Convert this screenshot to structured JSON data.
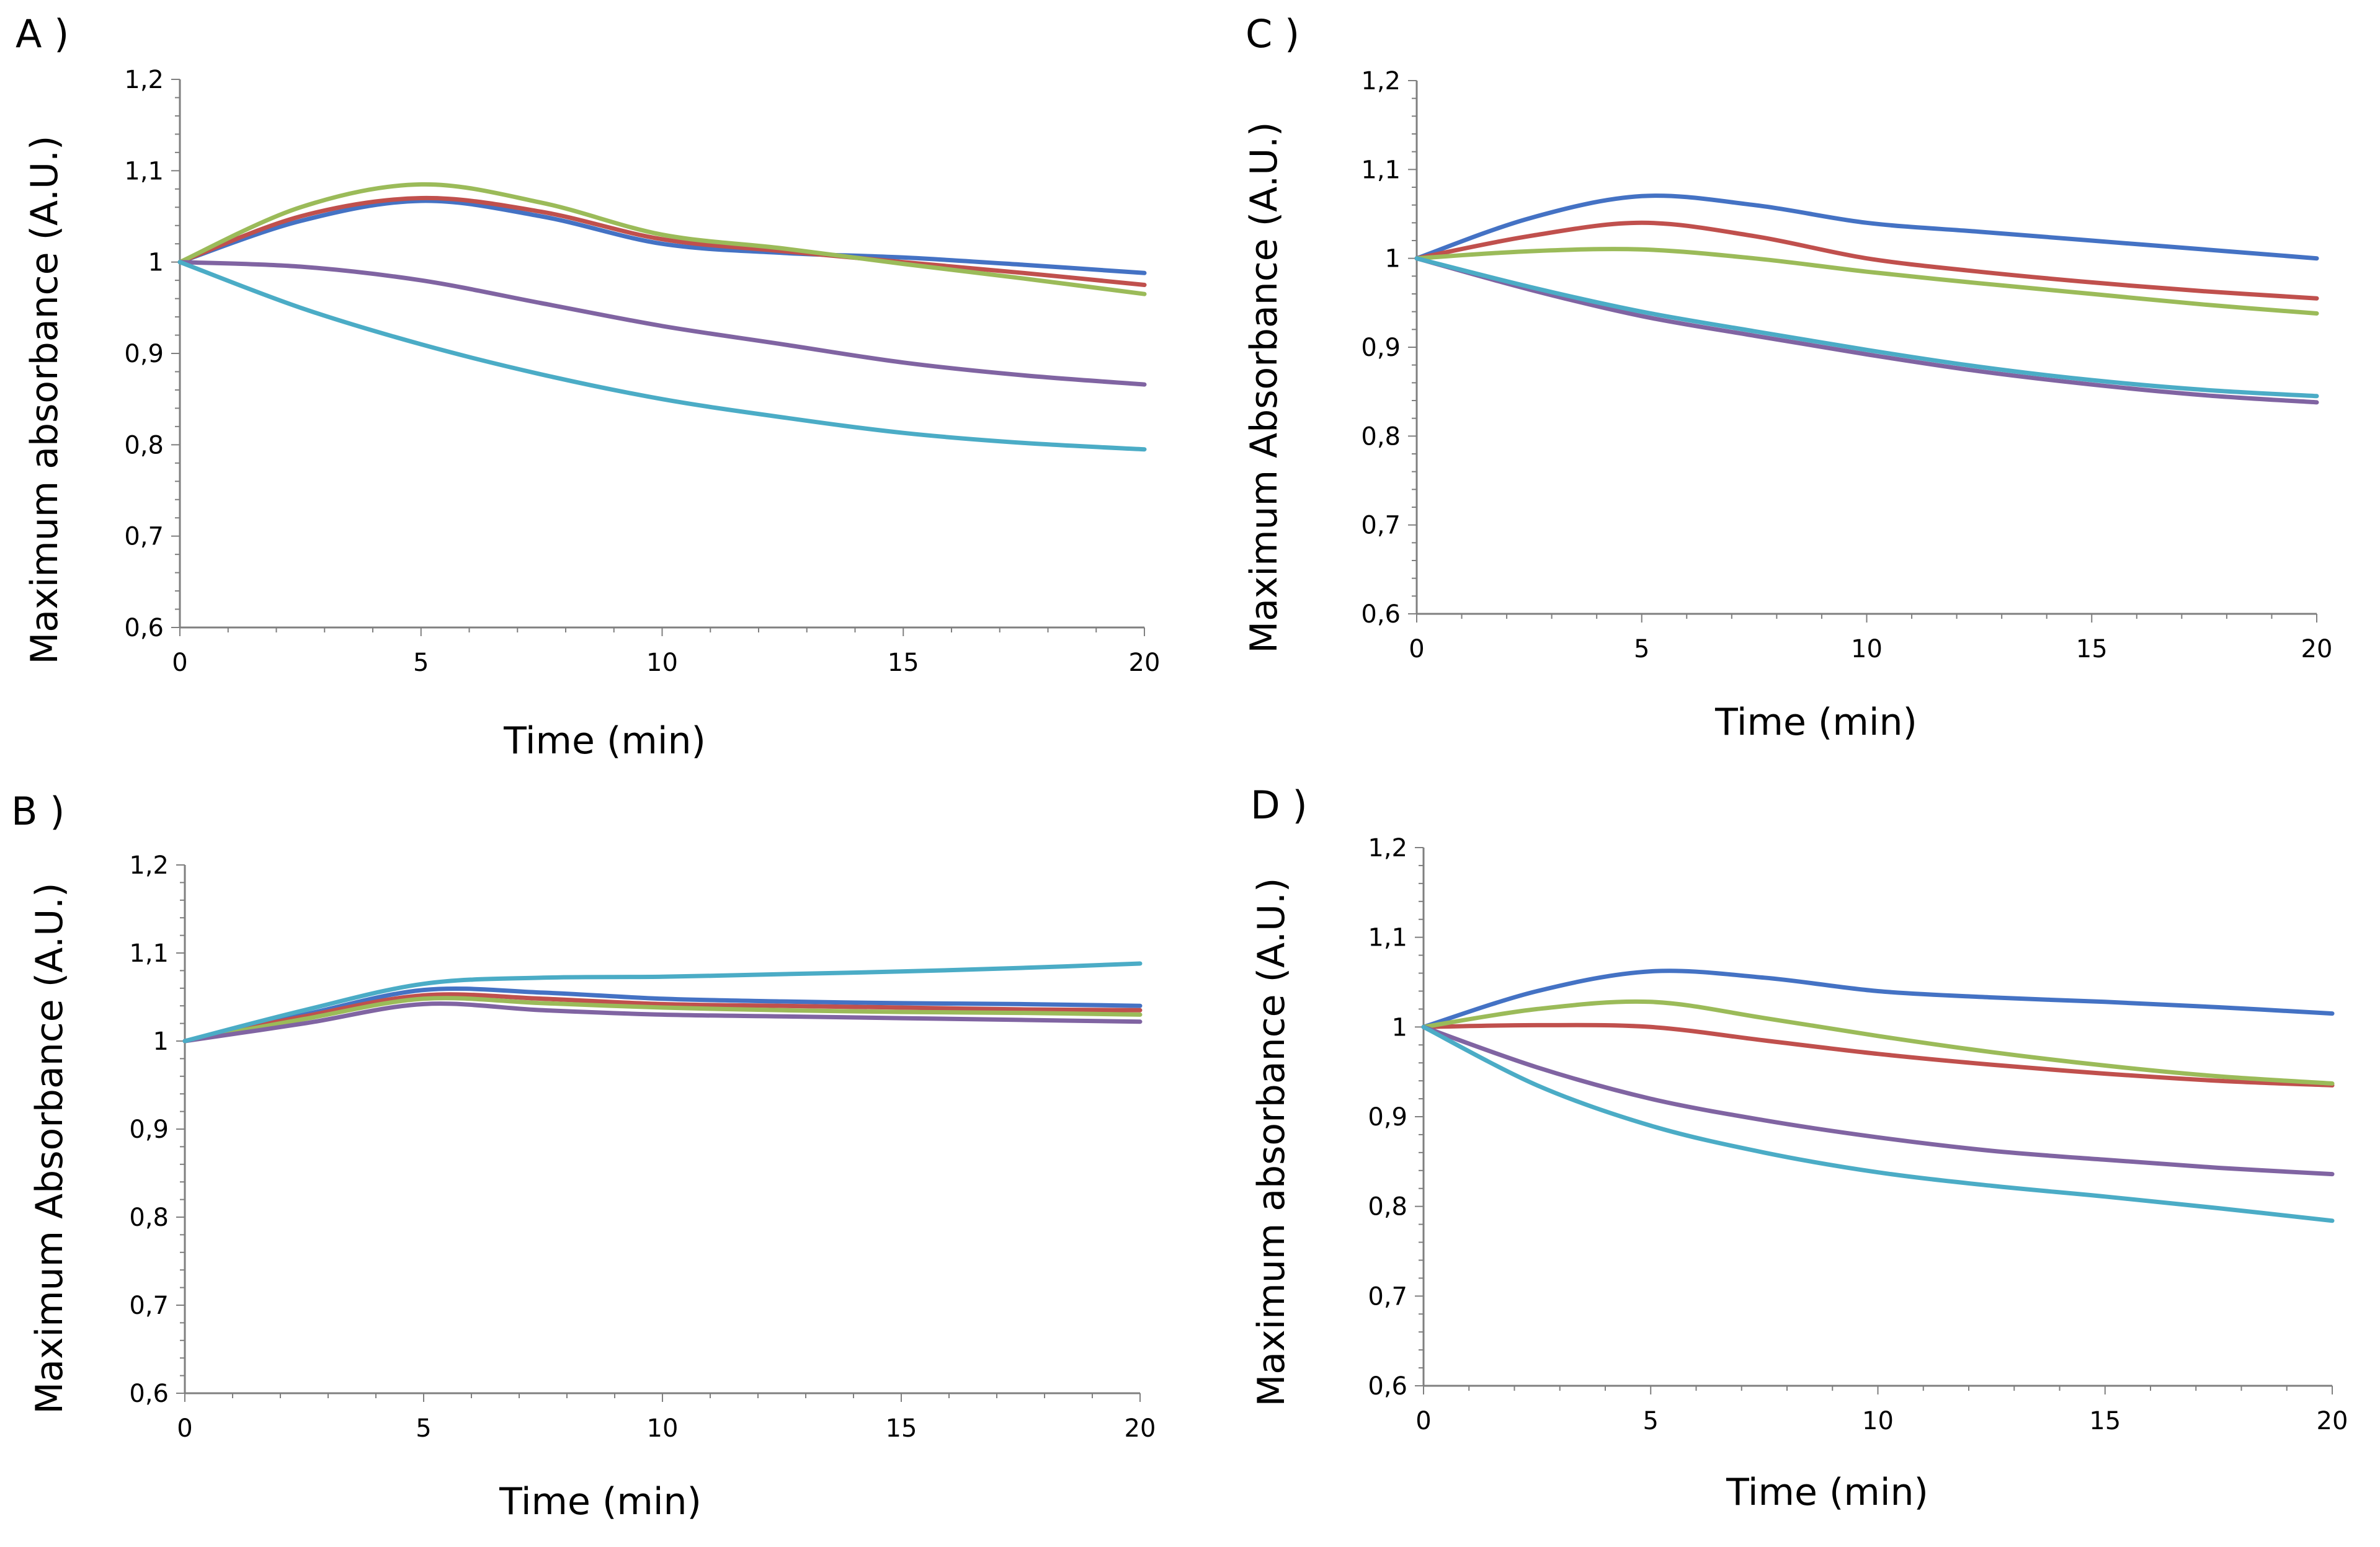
{
  "figure": {
    "series_colors": [
      "#4472C4",
      "#C0504D",
      "#9BBB59",
      "#8064A2",
      "#4BACC6"
    ]
  },
  "chart_data": [
    {
      "id": "A",
      "type": "line",
      "panel_label": "A )",
      "title": "",
      "xlabel": "Time (min)",
      "ylabel": "Maximum absorbance (A.U.)",
      "xlim": [
        0,
        20
      ],
      "ylim": [
        0.6,
        1.2
      ],
      "xticks": [
        0,
        5,
        10,
        15,
        20
      ],
      "xtick_labels": [
        "0",
        "5",
        "10",
        "15",
        "20"
      ],
      "yticks": [
        0.6,
        0.7,
        0.8,
        0.9,
        1.0,
        1.1,
        1.2
      ],
      "ytick_labels": [
        "0,6",
        "0,7",
        "0,8",
        "0,9",
        "1",
        "1,1",
        "1,2"
      ],
      "grid": false,
      "x": [
        0,
        2.5,
        5,
        7.5,
        10,
        12.5,
        15,
        17.5,
        20
      ],
      "series": [
        {
          "color": "#4472C4",
          "values": [
            1.0,
            1.045,
            1.067,
            1.05,
            1.02,
            1.01,
            1.005,
            0.997,
            0.988
          ]
        },
        {
          "color": "#C0504D",
          "values": [
            1.0,
            1.05,
            1.07,
            1.055,
            1.025,
            1.012,
            1.0,
            0.988,
            0.975
          ]
        },
        {
          "color": "#9BBB59",
          "values": [
            1.0,
            1.06,
            1.085,
            1.065,
            1.03,
            1.015,
            0.998,
            0.982,
            0.965
          ]
        },
        {
          "color": "#8064A2",
          "values": [
            1.0,
            0.995,
            0.98,
            0.955,
            0.93,
            0.91,
            0.89,
            0.876,
            0.866
          ]
        },
        {
          "color": "#4BACC6",
          "values": [
            1.0,
            0.95,
            0.91,
            0.877,
            0.85,
            0.83,
            0.813,
            0.802,
            0.795
          ]
        }
      ]
    },
    {
      "id": "B",
      "type": "line",
      "panel_label": "B )",
      "title": "",
      "xlabel": "Time (min)",
      "ylabel": "Maximum Absorbance (A.U.)",
      "xlim": [
        0,
        20
      ],
      "ylim": [
        0.6,
        1.2
      ],
      "xticks": [
        0,
        5,
        10,
        15,
        20
      ],
      "xtick_labels": [
        "0",
        "5",
        "10",
        "15",
        "20"
      ],
      "yticks": [
        0.6,
        0.7,
        0.8,
        0.9,
        1.0,
        1.1,
        1.2
      ],
      "ytick_labels": [
        "0,6",
        "0,7",
        "0,8",
        "0,9",
        "1",
        "1,1",
        "1,2"
      ],
      "grid": false,
      "x": [
        0,
        2.5,
        5,
        7.5,
        10,
        12.5,
        15,
        17.5,
        20
      ],
      "series": [
        {
          "color": "#4472C4",
          "values": [
            1.0,
            1.03,
            1.058,
            1.055,
            1.048,
            1.045,
            1.043,
            1.042,
            1.04
          ]
        },
        {
          "color": "#C0504D",
          "values": [
            1.0,
            1.028,
            1.052,
            1.048,
            1.042,
            1.04,
            1.038,
            1.036,
            1.035
          ]
        },
        {
          "color": "#9BBB59",
          "values": [
            1.0,
            1.025,
            1.048,
            1.043,
            1.038,
            1.035,
            1.033,
            1.032,
            1.03
          ]
        },
        {
          "color": "#8064A2",
          "values": [
            1.0,
            1.02,
            1.042,
            1.035,
            1.03,
            1.028,
            1.026,
            1.024,
            1.022
          ]
        },
        {
          "color": "#4BACC6",
          "values": [
            1.0,
            1.035,
            1.065,
            1.072,
            1.073,
            1.076,
            1.079,
            1.083,
            1.088
          ]
        }
      ]
    },
    {
      "id": "C",
      "type": "line",
      "panel_label": "C )",
      "title": "",
      "xlabel": "Time (min)",
      "ylabel": "Maximum Absorbance (A.U.)",
      "xlim": [
        0,
        20
      ],
      "ylim": [
        0.6,
        1.2
      ],
      "xticks": [
        0,
        5,
        10,
        15,
        20
      ],
      "xtick_labels": [
        "0",
        "5",
        "10",
        "15",
        "20"
      ],
      "yticks": [
        0.6,
        0.7,
        0.8,
        0.9,
        1.0,
        1.1,
        1.2
      ],
      "ytick_labels": [
        "0,6",
        "0,7",
        "0,8",
        "0,9",
        "1",
        "1,1",
        "1,2"
      ],
      "grid": false,
      "x": [
        0,
        2.5,
        5,
        7.5,
        10,
        12.5,
        15,
        17.5,
        20
      ],
      "series": [
        {
          "color": "#4472C4",
          "values": [
            1.0,
            1.045,
            1.07,
            1.06,
            1.04,
            1.03,
            1.02,
            1.01,
            1.0
          ]
        },
        {
          "color": "#C0504D",
          "values": [
            1.0,
            1.025,
            1.04,
            1.025,
            1.0,
            0.985,
            0.973,
            0.963,
            0.955
          ]
        },
        {
          "color": "#9BBB59",
          "values": [
            1.0,
            1.008,
            1.01,
            1.0,
            0.985,
            0.972,
            0.96,
            0.948,
            0.938
          ]
        },
        {
          "color": "#8064A2",
          "values": [
            1.0,
            0.965,
            0.935,
            0.913,
            0.892,
            0.873,
            0.858,
            0.846,
            0.838
          ]
        },
        {
          "color": "#4BACC6",
          "values": [
            1.0,
            0.968,
            0.94,
            0.918,
            0.897,
            0.878,
            0.863,
            0.852,
            0.845
          ]
        }
      ]
    },
    {
      "id": "D",
      "type": "line",
      "panel_label": "D )",
      "title": "",
      "xlabel": "Time (min)",
      "ylabel": "Maximum absorbance (A.U.)",
      "xlim": [
        0,
        20
      ],
      "ylim": [
        0.6,
        1.2
      ],
      "xticks": [
        0,
        5,
        10,
        15,
        20
      ],
      "xtick_labels": [
        "0",
        "5",
        "10",
        "15",
        "20"
      ],
      "yticks": [
        0.6,
        0.7,
        0.8,
        0.9,
        1.0,
        1.1,
        1.2
      ],
      "ytick_labels": [
        "0,6",
        "0,7",
        "0,8",
        "0,9",
        "1",
        "1,1",
        "1,2"
      ],
      "grid": false,
      "x": [
        0,
        2.5,
        5,
        7.5,
        10,
        12.5,
        15,
        17.5,
        20
      ],
      "series": [
        {
          "color": "#4472C4",
          "values": [
            1.0,
            1.04,
            1.062,
            1.055,
            1.04,
            1.033,
            1.028,
            1.022,
            1.015
          ]
        },
        {
          "color": "#C0504D",
          "values": [
            1.0,
            1.002,
            1.0,
            0.985,
            0.97,
            0.958,
            0.948,
            0.94,
            0.935
          ]
        },
        {
          "color": "#9BBB59",
          "values": [
            1.0,
            1.02,
            1.028,
            1.01,
            0.99,
            0.972,
            0.957,
            0.945,
            0.937
          ]
        },
        {
          "color": "#8064A2",
          "values": [
            1.0,
            0.955,
            0.92,
            0.896,
            0.877,
            0.862,
            0.852,
            0.843,
            0.836
          ]
        },
        {
          "color": "#4BACC6",
          "values": [
            1.0,
            0.935,
            0.89,
            0.86,
            0.838,
            0.823,
            0.811,
            0.798,
            0.784
          ]
        }
      ]
    }
  ]
}
